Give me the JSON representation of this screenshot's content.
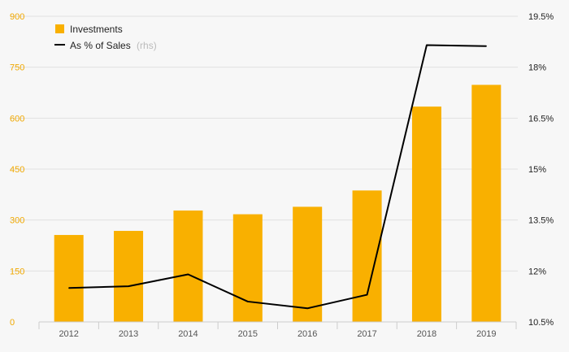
{
  "chart_data": {
    "type": "bar",
    "categories": [
      "2012",
      "2013",
      "2014",
      "2015",
      "2016",
      "2017",
      "2018",
      "2019"
    ],
    "series": [
      {
        "name": "Investments",
        "type": "bar",
        "axis": "left",
        "values": [
          256,
          268,
          328,
          317,
          339,
          387,
          634,
          698
        ]
      },
      {
        "name": "As % of Sales",
        "name_suffix": "(rhs)",
        "type": "line",
        "axis": "right",
        "values": [
          11.5,
          11.55,
          11.9,
          11.1,
          10.9,
          11.3,
          18.65,
          18.62
        ]
      }
    ],
    "left_axis": {
      "range": [
        0,
        900
      ],
      "ticks": [
        "0",
        "150",
        "300",
        "450",
        "600",
        "750",
        "900"
      ]
    },
    "right_axis": {
      "range": [
        10.5,
        19.5
      ],
      "ticks": [
        "10.5%",
        "12%",
        "13.5%",
        "15%",
        "16.5%",
        "18%",
        "19.5%"
      ]
    },
    "grid": true,
    "legend_position": "top-left",
    "colors": {
      "bar": "#f9b000",
      "line": "#000000",
      "left_ticks": "#f0a800",
      "grid": "#e2e2e2"
    }
  }
}
